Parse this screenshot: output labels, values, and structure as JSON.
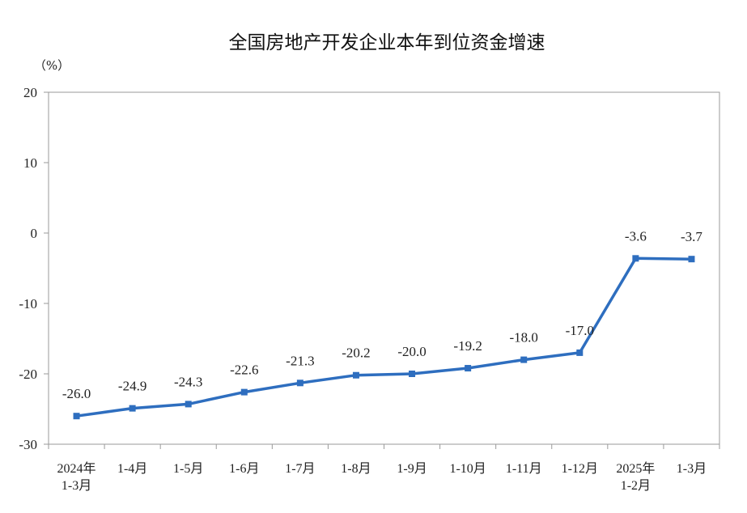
{
  "chart_data": {
    "type": "line",
    "title": "全国房地产开发企业本年到位资金增速",
    "unit_label": "（%）",
    "categories": [
      [
        "2024年",
        "1-3月"
      ],
      [
        "1-4月"
      ],
      [
        "1-5月"
      ],
      [
        "1-6月"
      ],
      [
        "1-7月"
      ],
      [
        "1-8月"
      ],
      [
        "1-9月"
      ],
      [
        "1-10月"
      ],
      [
        "1-11月"
      ],
      [
        "1-12月"
      ],
      [
        "2025年",
        "1-2月"
      ],
      [
        "1-3月"
      ]
    ],
    "series": [
      {
        "values": [
          -26.0,
          -24.9,
          -24.3,
          -22.6,
          -21.3,
          -20.2,
          -20.0,
          -19.2,
          -18.0,
          -17.0,
          -3.6,
          -3.7
        ],
        "labels": [
          "-26.0",
          "-24.9",
          "-24.3",
          "-22.6",
          "-21.3",
          "-20.2",
          "-20.0",
          "-19.2",
          "-18.0",
          "-17.0",
          "-3.6",
          "-3.7"
        ],
        "color": "#2e6ebf"
      }
    ],
    "ylim": [
      -30,
      20
    ],
    "yticks": [
      "20",
      "10",
      "0",
      "-10",
      "-20",
      "-30"
    ],
    "ytick_values": [
      20,
      10,
      0,
      -10,
      -20,
      -30
    ],
    "grid": false,
    "legend": "none"
  }
}
